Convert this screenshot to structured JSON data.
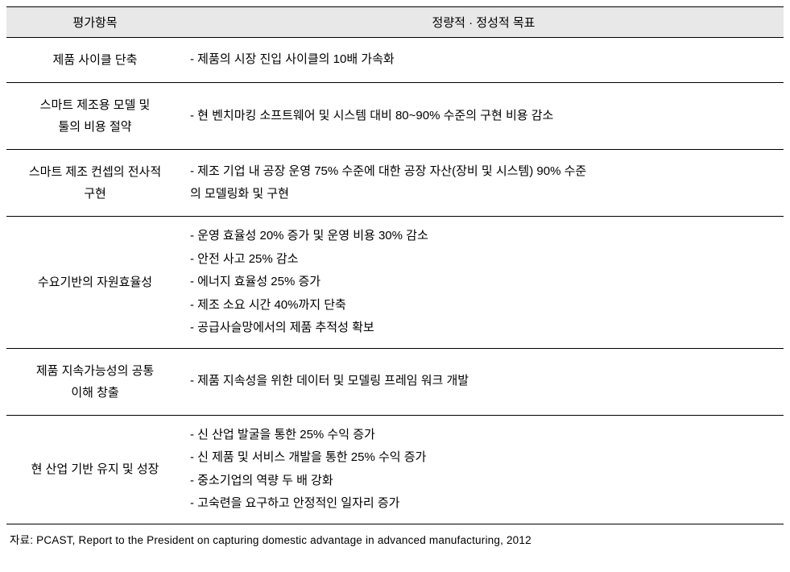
{
  "table": {
    "header": {
      "col1": "평가항목",
      "col2": "정량적 · 정성적 목표"
    },
    "rows": [
      {
        "label": "제품 사이클 단축",
        "items": [
          "- 제품의 시장 진입 사이클의 10배 가속화"
        ]
      },
      {
        "label": "스마트 제조용 모델 및\n툴의 비용 절약",
        "items": [
          "- 현 벤치마킹 소프트웨어 및 시스템 대비 80~90% 수준의 구현 비용 감소"
        ]
      },
      {
        "label": "스마트 제조 컨셉의 전사적\n구현",
        "items": [
          "- 제조 기업 내 공장 운영 75% 수준에 대한 공장 자산(장비 및 시스템) 90% 수준\n  의 모델링화 및 구현"
        ]
      },
      {
        "label": "수요기반의 자원효율성",
        "items": [
          "- 운영 효율성 20% 증가 및 운영 비용 30% 감소",
          "- 안전 사고 25% 감소",
          "- 에너지 효율성 25% 증가",
          "- 제조 소요 시간 40%까지 단축",
          "- 공급사슬망에서의 제품 추적성 확보"
        ]
      },
      {
        "label": "제품 지속가능성의 공통\n이해 창출",
        "items": [
          "- 제품 지속성을 위한 데이터 및 모델링 프레임 워크 개발"
        ]
      },
      {
        "label": "현 산업 기반 유지 및 성장",
        "items": [
          "- 신 산업 발굴을 통한 25% 수익 증가",
          "- 신 제품 및 서비스 개발을 통한 25% 수익 증가",
          "- 중소기업의 역량 두 배 강화",
          "- 고숙련을 요구하고 안정적인 일자리 증가"
        ]
      }
    ]
  },
  "source": "자료: PCAST, Report to the President on capturing domestic advantage in advanced manufacturing, 2012",
  "styling": {
    "header_bg": "#e8e8e8",
    "border_color": "#000000",
    "body_font_size": 15,
    "source_font_size": 13.5,
    "col1_width": 220,
    "line_height_content": 1.9,
    "line_height_label": 1.8
  }
}
